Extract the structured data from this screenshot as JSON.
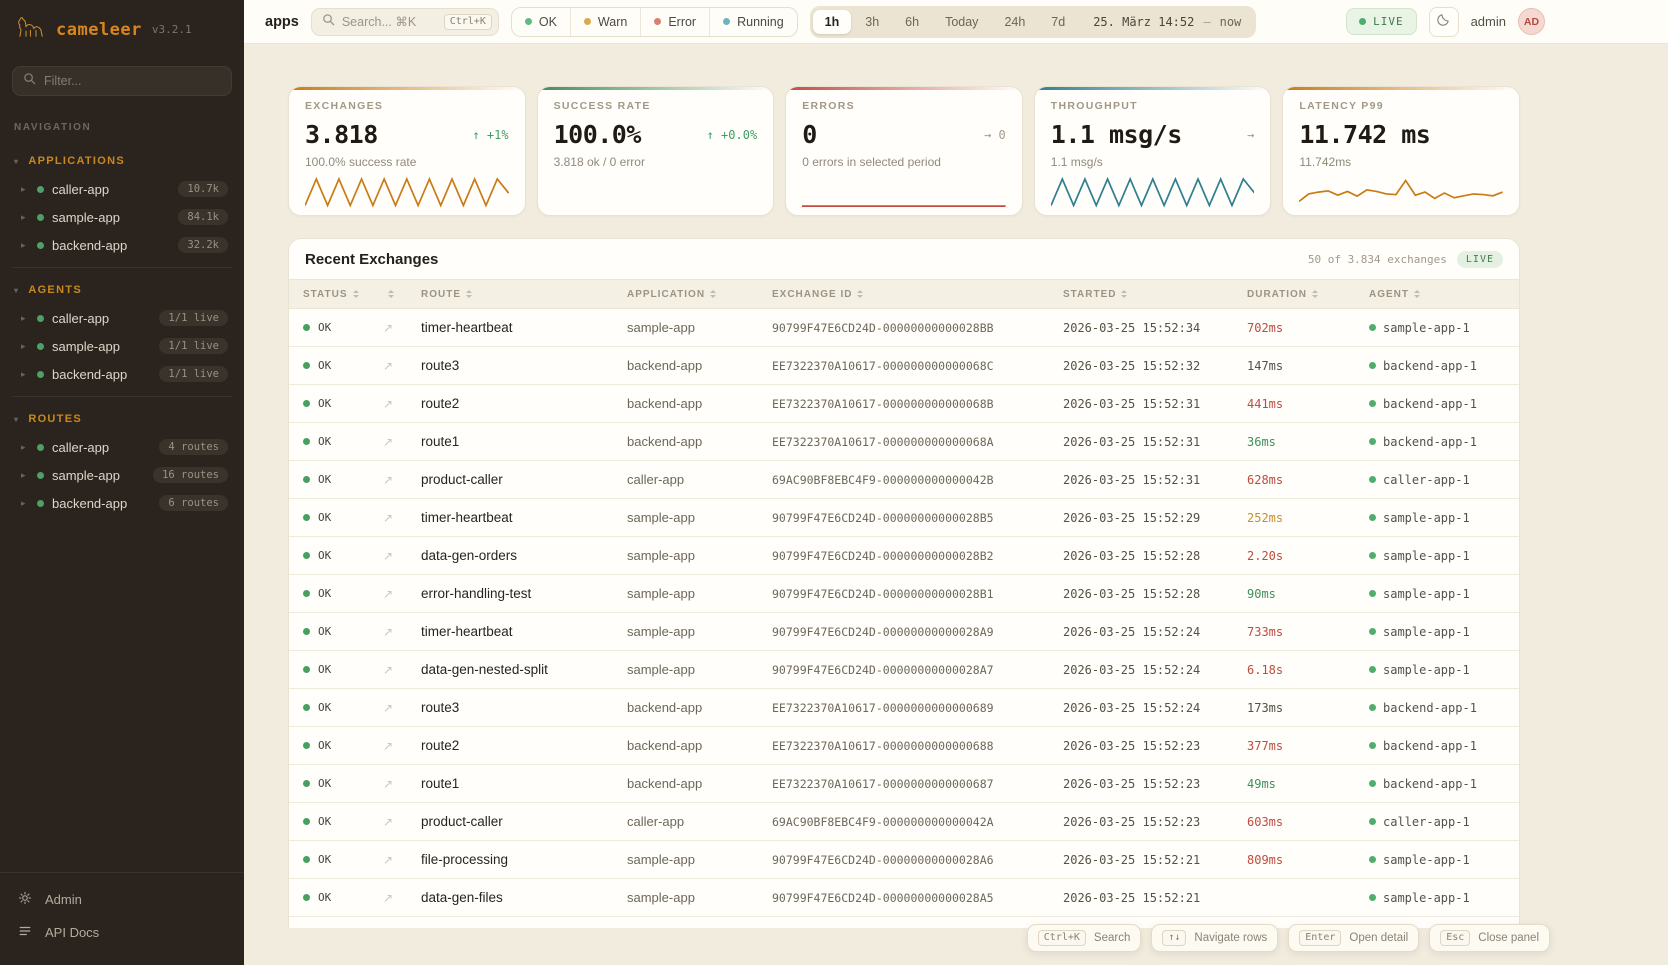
{
  "colors": {
    "brand_orange": "#d9851c",
    "sidebar_bg": "#2b241e",
    "main_bg": "#f2ecdf",
    "live_green": "#3c7c4a",
    "duration_bad": "#bf4b3e",
    "duration_warn": "#c98f2d",
    "duration_ok": "#3f8f59",
    "status_green_dot": "#46a05e"
  },
  "sidebar": {
    "brand": "cameleer",
    "version": "v3.2.1",
    "filter_placeholder": "Filter...",
    "nav_label": "NAVIGATION",
    "sections": [
      {
        "label": "APPLICATIONS",
        "items": [
          {
            "name": "caller-app",
            "badge": "10.7k"
          },
          {
            "name": "sample-app",
            "badge": "84.1k"
          },
          {
            "name": "backend-app",
            "badge": "32.2k"
          }
        ]
      },
      {
        "label": "AGENTS",
        "items": [
          {
            "name": "caller-app",
            "badge": "1/1 live"
          },
          {
            "name": "sample-app",
            "badge": "1/1 live"
          },
          {
            "name": "backend-app",
            "badge": "1/1 live"
          }
        ]
      },
      {
        "label": "ROUTES",
        "items": [
          {
            "name": "caller-app",
            "badge": "4 routes"
          },
          {
            "name": "sample-app",
            "badge": "16 routes"
          },
          {
            "name": "backend-app",
            "badge": "6 routes"
          }
        ]
      }
    ],
    "footer": [
      {
        "label": "Admin"
      },
      {
        "label": "API Docs"
      }
    ]
  },
  "topbar": {
    "title": "apps",
    "search": {
      "placeholder": "Search... ⌘K",
      "kbd": "Ctrl+K"
    },
    "status_filters": [
      {
        "label": "OK",
        "color": "#63b981"
      },
      {
        "label": "Warn",
        "color": "#d9a953"
      },
      {
        "label": "Error",
        "color": "#d77f72"
      },
      {
        "label": "Running",
        "color": "#6cb5c0"
      }
    ],
    "time_ranges": [
      {
        "label": "1h",
        "cls": "active"
      },
      {
        "label": "3h",
        "cls": ""
      },
      {
        "label": "6h",
        "cls": ""
      },
      {
        "label": "Today",
        "cls": ""
      },
      {
        "label": "24h",
        "cls": ""
      },
      {
        "label": "7d",
        "cls": ""
      }
    ],
    "date_from": "25. März 14:52",
    "date_sep": "—",
    "date_to": "now",
    "live_label": "LIVE",
    "user_name": "admin",
    "user_initials": "AD"
  },
  "cards": [
    {
      "label": "EXCHANGES",
      "value": "3.818",
      "delta": "↑ +1%",
      "delta_cls": "up",
      "subtitle": "100.0% success rate",
      "accent": "#c97b16",
      "spark": [
        5,
        90,
        5,
        90,
        5,
        90,
        5,
        90,
        5,
        90,
        5,
        90,
        5,
        90,
        5,
        90,
        5,
        90,
        45
      ]
    },
    {
      "label": "SUCCESS RATE",
      "value": "100.0%",
      "delta": "↑ +0.0%",
      "delta_cls": "up",
      "subtitle": "3.818 ok / 0 error",
      "accent": "#3f8f59",
      "spark": []
    },
    {
      "label": "ERRORS",
      "value": "0",
      "delta": "→ 0",
      "delta_cls": "flat",
      "subtitle": "0 errors in selected period",
      "accent": "#c44b40",
      "spark": [
        3,
        3
      ]
    },
    {
      "label": "THROUGHPUT",
      "value": "1.1 msg/s",
      "delta": "→",
      "delta_cls": "flat",
      "subtitle": "1.1 msg/s",
      "accent": "#2d7f8f",
      "spark": [
        5,
        90,
        5,
        90,
        5,
        90,
        5,
        90,
        5,
        90,
        5,
        90,
        5,
        90,
        5,
        90,
        5,
        90,
        45
      ]
    },
    {
      "label": "LATENCY P99",
      "value": "11.742 ms",
      "delta": "",
      "delta_cls": "flat",
      "subtitle": "11.742ms",
      "accent": "#c97b16",
      "spark": [
        18,
        42,
        48,
        52,
        38,
        50,
        35,
        55,
        50,
        42,
        40,
        85,
        38,
        48,
        28,
        45,
        30,
        36,
        42,
        40,
        36,
        48
      ]
    }
  ],
  "table": {
    "title": "Recent Exchanges",
    "summary": "50 of 3.834 exchanges",
    "live_label": "LIVE",
    "columns": [
      "STATUS",
      "",
      "ROUTE",
      "APPLICATION",
      "EXCHANGE ID",
      "STARTED",
      "DURATION",
      "AGENT"
    ],
    "rows": [
      {
        "status": "OK",
        "route": "timer-heartbeat",
        "app": "sample-app",
        "exchange_id": "90799F47E6CD24D-00000000000028BB",
        "started": "2026-03-25 15:52:34",
        "duration": "702ms",
        "tone": "bad",
        "agent": "sample-app-1"
      },
      {
        "status": "OK",
        "route": "route3",
        "app": "backend-app",
        "exchange_id": "EE7322370A10617-000000000000068C",
        "started": "2026-03-25 15:52:32",
        "duration": "147ms",
        "tone": "mid",
        "agent": "backend-app-1"
      },
      {
        "status": "OK",
        "route": "route2",
        "app": "backend-app",
        "exchange_id": "EE7322370A10617-000000000000068B",
        "started": "2026-03-25 15:52:31",
        "duration": "441ms",
        "tone": "bad",
        "agent": "backend-app-1"
      },
      {
        "status": "OK",
        "route": "route1",
        "app": "backend-app",
        "exchange_id": "EE7322370A10617-000000000000068A",
        "started": "2026-03-25 15:52:31",
        "duration": "36ms",
        "tone": "ok",
        "agent": "backend-app-1"
      },
      {
        "status": "OK",
        "route": "product-caller",
        "app": "caller-app",
        "exchange_id": "69AC90BF8EBC4F9-000000000000042B",
        "started": "2026-03-25 15:52:31",
        "duration": "628ms",
        "tone": "bad",
        "agent": "caller-app-1"
      },
      {
        "status": "OK",
        "route": "timer-heartbeat",
        "app": "sample-app",
        "exchange_id": "90799F47E6CD24D-00000000000028B5",
        "started": "2026-03-25 15:52:29",
        "duration": "252ms",
        "tone": "warn",
        "agent": "sample-app-1"
      },
      {
        "status": "OK",
        "route": "data-gen-orders",
        "app": "sample-app",
        "exchange_id": "90799F47E6CD24D-00000000000028B2",
        "started": "2026-03-25 15:52:28",
        "duration": "2.20s",
        "tone": "bad",
        "agent": "sample-app-1"
      },
      {
        "status": "OK",
        "route": "error-handling-test",
        "app": "sample-app",
        "exchange_id": "90799F47E6CD24D-00000000000028B1",
        "started": "2026-03-25 15:52:28",
        "duration": "90ms",
        "tone": "ok",
        "agent": "sample-app-1"
      },
      {
        "status": "OK",
        "route": "timer-heartbeat",
        "app": "sample-app",
        "exchange_id": "90799F47E6CD24D-00000000000028A9",
        "started": "2026-03-25 15:52:24",
        "duration": "733ms",
        "tone": "bad",
        "agent": "sample-app-1"
      },
      {
        "status": "OK",
        "route": "data-gen-nested-split",
        "app": "sample-app",
        "exchange_id": "90799F47E6CD24D-00000000000028A7",
        "started": "2026-03-25 15:52:24",
        "duration": "6.18s",
        "tone": "bad",
        "agent": "sample-app-1"
      },
      {
        "status": "OK",
        "route": "route3",
        "app": "backend-app",
        "exchange_id": "EE7322370A10617-0000000000000689",
        "started": "2026-03-25 15:52:24",
        "duration": "173ms",
        "tone": "mid",
        "agent": "backend-app-1"
      },
      {
        "status": "OK",
        "route": "route2",
        "app": "backend-app",
        "exchange_id": "EE7322370A10617-0000000000000688",
        "started": "2026-03-25 15:52:23",
        "duration": "377ms",
        "tone": "bad",
        "agent": "backend-app-1"
      },
      {
        "status": "OK",
        "route": "route1",
        "app": "backend-app",
        "exchange_id": "EE7322370A10617-0000000000000687",
        "started": "2026-03-25 15:52:23",
        "duration": "49ms",
        "tone": "ok",
        "agent": "backend-app-1"
      },
      {
        "status": "OK",
        "route": "product-caller",
        "app": "caller-app",
        "exchange_id": "69AC90BF8EBC4F9-000000000000042A",
        "started": "2026-03-25 15:52:23",
        "duration": "603ms",
        "tone": "bad",
        "agent": "caller-app-1"
      },
      {
        "status": "OK",
        "route": "file-processing",
        "app": "sample-app",
        "exchange_id": "90799F47E6CD24D-00000000000028A6",
        "started": "2026-03-25 15:52:21",
        "duration": "809ms",
        "tone": "bad",
        "agent": "sample-app-1"
      },
      {
        "status": "OK",
        "route": "data-gen-files",
        "app": "sample-app",
        "exchange_id": "90799F47E6CD24D-00000000000028A5",
        "started": "2026-03-25 15:52:21",
        "duration": "",
        "tone": "mid",
        "agent": "sample-app-1"
      }
    ]
  },
  "shortcuts": [
    {
      "key": "Ctrl+K",
      "label": "Search"
    },
    {
      "key": "↑↓",
      "label": "Navigate rows"
    },
    {
      "key": "Enter",
      "label": "Open detail"
    },
    {
      "key": "Esc",
      "label": "Close panel"
    }
  ]
}
